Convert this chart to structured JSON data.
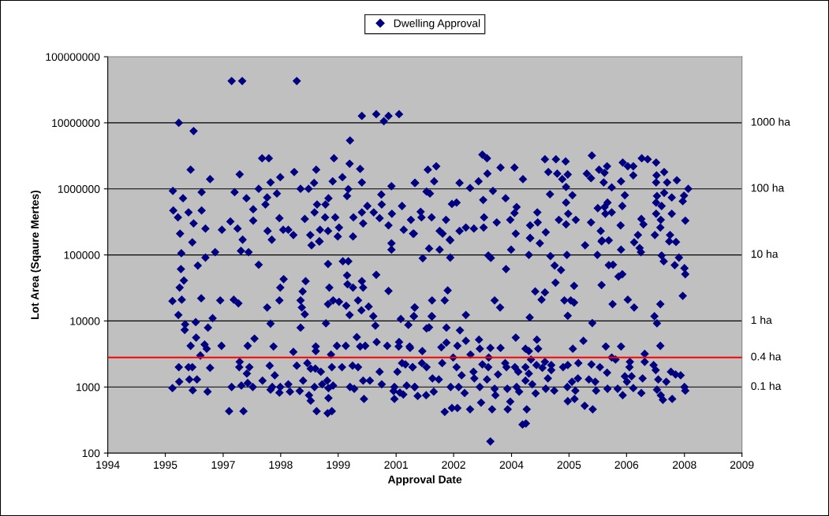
{
  "chart_data": {
    "type": "scatter",
    "xlabel": "Approval Date",
    "ylabel": "Lot Area (Sqaure Mertes)",
    "log": "y",
    "legend": "top",
    "marker": "diamond",
    "xlim": [
      1994,
      2009
    ],
    "xticks": [
      {
        "value": 1994,
        "label": "1994"
      },
      {
        "value": 1995.36,
        "label": "1995"
      },
      {
        "value": 1996.73,
        "label": "1997"
      },
      {
        "value": 1998.09,
        "label": "1998"
      },
      {
        "value": 1999.45,
        "label": "1999"
      },
      {
        "value": 2000.82,
        "label": "2001"
      },
      {
        "value": 2002.18,
        "label": "2002"
      },
      {
        "value": 2003.55,
        "label": "2004"
      },
      {
        "value": 2004.91,
        "label": "2005"
      },
      {
        "value": 2006.27,
        "label": "2006"
      },
      {
        "value": 2007.64,
        "label": "2008"
      },
      {
        "value": 2009,
        "label": "2009"
      }
    ],
    "ylim": [
      100,
      100000000
    ],
    "yticks": [
      100,
      1000,
      10000,
      100000,
      1000000,
      10000000,
      100000000
    ],
    "ref_lines": [
      {
        "axis": "y",
        "value": 1000,
        "color": "#000000",
        "label": "0.1 ha"
      },
      {
        "axis": "y",
        "value": 10000,
        "color": "#000000",
        "label": "1 ha"
      },
      {
        "axis": "y",
        "value": 100000,
        "color": "#000000",
        "label": "10 ha"
      },
      {
        "axis": "y",
        "value": 1000000,
        "color": "#000000",
        "label": "100 ha"
      },
      {
        "axis": "y",
        "value": 10000000,
        "color": "#000000",
        "label": "1000 ha"
      },
      {
        "axis": "y",
        "value": 2800,
        "color": "#ff0000",
        "label": "0.4 ha"
      }
    ],
    "series": [
      {
        "name": "Dwelling Approval",
        "color": "#000080",
        "x": [
          1995.68,
          1996.03,
          1996.93,
          1997.18,
          1998.47,
          2000.01,
          2000.35,
          2000.53,
          2000.64,
          2000.89,
          1999.73,
          1995.96,
          1997.65,
          1997.81,
          1999.35,
          1999.97,
          1998.93,
          1999.72,
          1995.54,
          1996.42,
          1997.12,
          1998.41,
          1998.56,
          2001.27,
          2000.01,
          1995.78,
          1996.22,
          1995.55,
          1995.66,
          1995.71,
          1995.91,
          1996.03,
          1996.22,
          1996.31,
          1996.7,
          1997.0,
          1997.07,
          1996.9,
          1997.28,
          1997.44,
          1997.44,
          1997.57,
          1997.73,
          1997.77,
          1997.85,
          1997.88,
          1997.78,
          1998.06,
          1998.0,
          1998.08,
          1998.15,
          1998.27,
          1998.39,
          1998.66,
          1998.75,
          1998.88,
          1998.95,
          1998.89,
          1998.79,
          1999.0,
          1999.15,
          1999.14,
          1999.02,
          1999.21,
          1999.32,
          1999.22,
          1999.38,
          1999.47,
          1999.44,
          1999.55,
          1999.66,
          1999.69,
          1999.8,
          1999.81,
          2000.01,
          2000.04,
          2000.14,
          2000.29,
          2000.43,
          2000.47,
          2000.48,
          2000.64,
          2000.72,
          2000.71,
          2000.96,
          2001.0,
          2001.17,
          2001.22,
          2001.26,
          2001.57,
          2001.77,
          2001.72,
          2001.54,
          2001.62,
          2001.4,
          2001.42,
          2001.66,
          2001.24,
          2002.0,
          2001.85,
          2001.92,
          2002.09,
          2002.14,
          2002.25,
          2002.32,
          2002.57,
          2002.32,
          2002.47,
          2002.66,
          2002.77,
          2002.86,
          2002.97,
          2002.98,
          2003.11,
          2002.88,
          2002.9,
          2002.89,
          2003.29,
          2003.41,
          2003.62,
          2003.82,
          2003.67,
          2003.62,
          2003.52,
          2003.65,
          2003.2,
          2004.16,
          2004.17,
          2003.99,
          2004.36,
          2003.99,
          2004.34,
          2004.6,
          2004.83,
          2004.42,
          2004.63,
          2004.88,
          2004.75,
          2004.84,
          2004.46,
          2004.99,
          2004.84,
          2004.89,
          2004.67,
          2005.07,
          2004.84,
          2005.45,
          2005.33,
          2005.43,
          2005.62,
          2005.81,
          2005.75,
          2005.73,
          2005.92,
          2005.59,
          2005.75,
          2005.82,
          2005.77,
          2005.92,
          2005.43,
          2005.66,
          2005.69,
          2006.18,
          2006.3,
          2006.43,
          2006.43,
          2006.63,
          2006.77,
          2006.97,
          2007.16,
          2006.98,
          2006.97,
          2007.23,
          2007.46,
          2007.73,
          2007.63,
          2007.6,
          2007.16,
          2007.34,
          2006.99,
          2006.97,
          2007.1,
          2006.97,
          2007.34,
          2007.08,
          2007.66,
          2007.07,
          2006.94,
          2007.3,
          2006.23,
          2006.14,
          2006.17,
          2006.13,
          2006.62,
          2006.67,
          2006.54,
          1995.74,
          1995.73,
          1996.0,
          1996.13,
          1996.31,
          1996.54,
          1995.7,
          1995.8,
          1995.53,
          1995.75,
          1996.21,
          1995.67,
          1995.83,
          1995.82,
          1996.08,
          1996.48,
          1996.37,
          1995.96,
          1996.09,
          1996.29,
          1996.34,
          1996.19,
          1996.69,
          1996.66,
          1996.98,
          1997.09,
          1997.15,
          1997.19,
          1997.33,
          1997.57,
          1995.68,
          1995.53,
          1995.69,
          1995.91,
          1996.0,
          1995.93,
          1996.11,
          1996.01,
          1996.36,
          1996.42,
          1996.87,
          1997.21,
          1996.93,
          1997.11,
          1997.12,
          1997.29,
          1997.35,
          1997.31,
          1997.47,
          1997.16,
          1997.31,
          1997.43,
          1997.66,
          1997.77,
          1997.85,
          1997.92,
          1997.83,
          1997.95,
          1997.89,
          1997.85,
          1998.06,
          1998.08,
          1998.06,
          1998.08,
          1998.16,
          1998.27,
          1998.31,
          1998.39,
          1998.54,
          1998.56,
          1998.59,
          1998.61,
          1998.66,
          1998.68,
          1998.56,
          1998.47,
          1998.62,
          1998.72,
          1998.8,
          1998.76,
          1998.8,
          1998.94,
          1999.2,
          1999.3,
          1999.22,
          1999.22,
          1999.33,
          1999.19,
          1999.07,
          1998.89,
          1998.91,
          1998.92,
          1998.92,
          1999.04,
          1999.28,
          1999.3,
          1999.16,
          1999.21,
          1999.24,
          1999.21,
          1998.82,
          1999.01,
          1999.33,
          1999.47,
          1999.42,
          1999.54,
          1999.56,
          1999.69,
          1999.66,
          1999.67,
          1999.8,
          1999.64,
          1999.72,
          1999.63,
          1999.73,
          1999.83,
          1999.79,
          1999.92,
          1999.92,
          2000.01,
          2000.04,
          2000.0,
          1999.89,
          1999.97,
          2000.09,
          2000.04,
          2000.06,
          2000.2,
          2000.17,
          2000.28,
          2000.33,
          2000.35,
          2000.36,
          2000.43,
          2000.48,
          2000.61,
          2000.64,
          2000.71,
          2000.71,
          2000.78,
          2000.76,
          2000.78,
          2000.85,
          2000.89,
          2000.88,
          2000.93,
          2000.96,
          2001.04,
          2001.11,
          2001.07,
          2000.91,
          2000.99,
          2001.14,
          2001.21,
          2001.26,
          2001.24,
          2001.26,
          2001.45,
          2001.6,
          2001.85,
          2002.1,
          2002.1,
          2002.04,
          2001.67,
          2001.97,
          2001.26,
          2001.24,
          2001.67,
          2002.47,
          2003.0,
          2003.06,
          2003.54,
          2003.42,
          2003.15,
          2003.28,
          2003.96,
          2003.99,
          2004.22,
          2004.47,
          2004.57,
          2004.72,
          2004.59,
          2003.98,
          2004.11,
          2004.26,
          2004.34,
          2004.86,
          2005.03,
          2004.8,
          2004.95,
          2005.03,
          2004.88,
          2005.29,
          2005.58,
          2005.68,
          2005.85,
          2005.85,
          2005.95,
          2005.68,
          2006.08,
          2006.17,
          2005.94,
          2006.14,
          2006.45,
          2006.58,
          2006.61,
          2006.3,
          2006.45,
          2005.46,
          2007.1,
          2007.15,
          2007.41,
          2007.51,
          2007.64,
          2007.66,
          2007.6,
          2007.07,
          2006.93,
          2006.99,
          2007.28,
          2007.44,
          2001.15,
          2001.21,
          2001.26,
          2001.33,
          2001.44,
          2001.54,
          2001.6,
          2001.66,
          2001.43,
          2001.54,
          2001.53,
          2001.68,
          2001.71,
          2001.83,
          2001.89,
          2001.91,
          2002.01,
          2002.01,
          2001.97,
          2002.14,
          2002.27,
          2002.11,
          2002.17,
          2002.25,
          2002.33,
          2002.27,
          2002.37,
          2002.3,
          2002.44,
          2002.47,
          2002.58,
          2002.57,
          2002.65,
          2002.67,
          2002.78,
          2002.8,
          2002.83,
          2002.8,
          2002.86,
          2002.97,
          2003.0,
          2003.05,
          2003.01,
          2003.05,
          2003.09,
          2003.15,
          2003.17,
          2003.23,
          2003.29,
          2003.45,
          2003.46,
          2003.52,
          2003.43,
          2003.4,
          2003.65,
          2003.63,
          2003.67,
          2003.71,
          2003.73,
          2003.81,
          2003.89,
          2003.91,
          2003.88,
          2003.96,
          2003.88,
          2003.96,
          2003.88,
          2004.04,
          2004.01,
          2004.12,
          2004.15,
          2004.18,
          2004.14,
          2004.28,
          2004.34,
          2004.36,
          2004.41,
          2004.49,
          2004.49,
          2004.56,
          2004.77,
          2004.88,
          2004.88,
          2005.04,
          2005.0,
          2005.13,
          2005.12,
          2004.98,
          2004.87,
          2005.06,
          2005.25,
          2005.28,
          2005.47,
          2005.38,
          2005.44,
          2005.55,
          2005.53,
          2005.64,
          2005.78,
          2005.81,
          2005.82,
          2005.92,
          2006.01,
          2006.06,
          2006.14,
          2006.18,
          2006.23,
          2006.28,
          2006.35,
          2006.34,
          2006.43,
          2006.39,
          2006.62,
          2006.65,
          2006.7,
          2006.7,
          2007.07,
          2006.91,
          2006.96,
          2007.02,
          2006.99,
          2007.08,
          2007.13,
          2007.21,
          2007.35,
          2007.32,
          2007.43,
          2007.55,
          2007.64,
          2007.66
        ],
        "values": [
          10000000,
          7500000,
          43000000,
          43000000,
          43000000,
          12700000,
          13500000,
          10600000,
          12700000,
          13500000,
          5400000,
          1950000,
          2900000,
          2900000,
          2900000,
          2000000,
          1950000,
          2400000,
          930000,
          1400000,
          1660000,
          1800000,
          1000000,
          1230000,
          1250000,
          720000,
          890000,
          470000,
          370000,
          210000,
          440000,
          300000,
          470000,
          250000,
          240000,
          890000,
          250000,
          320000,
          720000,
          490000,
          330000,
          1000000,
          580000,
          740000,
          1250000,
          170000,
          230000,
          360000,
          850000,
          1500000,
          240000,
          240000,
          200000,
          350000,
          1000000,
          1230000,
          580000,
          440000,
          200000,
          160000,
          580000,
          370000,
          240000,
          230000,
          1300000,
          720000,
          370000,
          260000,
          190000,
          1500000,
          780000,
          990000,
          190000,
          370000,
          440000,
          300000,
          550000,
          440000,
          360000,
          820000,
          580000,
          280000,
          420000,
          1100000,
          550000,
          240000,
          340000,
          210000,
          1230000,
          1950000,
          2200000,
          1300000,
          910000,
          850000,
          450000,
          370000,
          370000,
          210000,
          340000,
          230000,
          210000,
          170000,
          590000,
          620000,
          1230000,
          1030000,
          230000,
          260000,
          250000,
          1300000,
          3300000,
          2900000,
          1700000,
          930000,
          680000,
          370000,
          260000,
          2100000,
          720000,
          2100000,
          1400000,
          530000,
          430000,
          340000,
          210000,
          310000,
          440000,
          310000,
          280000,
          220000,
          180000,
          2800000,
          2800000,
          2600000,
          1800000,
          1700000,
          1650000,
          1400000,
          1070000,
          830000,
          800000,
          620000,
          420000,
          340000,
          340000,
          290000,
          3200000,
          1700000,
          1450000,
          1950000,
          2200000,
          1750000,
          1250000,
          1050000,
          510000,
          530000,
          620000,
          420000,
          440000,
          310000,
          230000,
          165000,
          2500000,
          2200000,
          2200000,
          1600000,
          2900000,
          2800000,
          2500000,
          1800000,
          1600000,
          1250000,
          1250000,
          1350000,
          1000000,
          790000,
          650000,
          870000,
          740000,
          780000,
          620000,
          550000,
          420000,
          420000,
          340000,
          330000,
          260000,
          200000,
          200000,
          800000,
          1300000,
          550000,
          280000,
          350000,
          290000,
          200000,
          106000,
          61000,
          155000,
          69000,
          91000,
          110000,
          32000,
          41000,
          20000,
          21000,
          22000,
          12300,
          8900,
          7300,
          9600,
          11000,
          7900,
          4200,
          5600,
          4400,
          3800,
          3000,
          4200,
          20500,
          21000,
          18500,
          115000,
          170000,
          110000,
          71000,
          2000,
          960,
          1200,
          2000,
          2000,
          1300,
          1300,
          890,
          850,
          1950,
          430,
          430,
          1000,
          2000,
          2400,
          1600,
          2000,
          4200,
          5400,
          1050,
          1150,
          1000,
          1250,
          16000,
          9100,
          4100,
          2100,
          1500,
          1000,
          910,
          820,
          1000,
          20500,
          32000,
          43000,
          1100,
          850,
          3400,
          870,
          20500,
          16000,
          28000,
          12600,
          40000,
          7900,
          2100,
          1250,
          2300,
          1900,
          750,
          620,
          430,
          400,
          430,
          680,
          960,
          1050,
          1250,
          1100,
          1000,
          1900,
          4100,
          3500,
          1700,
          3100,
          2000,
          9200,
          18000,
          32000,
          73000,
          140000,
          160000,
          20500,
          19500,
          4200,
          2000,
          80000,
          80000,
          49000,
          36000,
          32000,
          17000,
          12300,
          4200,
          1000,
          940,
          2100,
          2000,
          20500,
          40000,
          32000,
          14500,
          5700,
          4100,
          4200,
          1250,
          660,
          1250,
          16500,
          11800,
          8500,
          50000,
          4800,
          1700,
          1100,
          4200,
          28500,
          150000,
          120000,
          1000,
          870,
          660,
          1700,
          4800,
          4100,
          10700,
          2300,
          2200,
          8700,
          1050,
          820,
          770,
          4100,
          2000,
          16000,
          11800,
          1000,
          89000,
          125000,
          120000,
          91000,
          166000,
          29000,
          20500,
          20500,
          16000,
          11800,
          11700,
          12300,
          98000,
          90000,
          120000,
          61000,
          20500,
          16000,
          100000,
          180000,
          150000,
          96000,
          69000,
          59000,
          38000,
          11300,
          28000,
          21000,
          27000,
          100000,
          34000,
          20500,
          20500,
          19000,
          12000,
          140000,
          100000,
          160000,
          166000,
          70000,
          71000,
          35000,
          47000,
          51000,
          18000,
          120000,
          155000,
          127000,
          110000,
          21000,
          16000,
          9300,
          98000,
          80000,
          70000,
          91000,
          63000,
          51000,
          24000,
          18000,
          11800,
          9200,
          160000,
          157000,
          3900,
          2000,
          1000,
          730,
          3500,
          7700,
          8000,
          11800,
          2300,
          2000,
          750,
          1350,
          850,
          1300,
          4000,
          2300,
          7900,
          4700,
          420,
          480,
          480,
          1000,
          2800,
          2000,
          7200,
          4200,
          1500,
          1000,
          810,
          5000,
          3100,
          460,
          1700,
          1350,
          5200,
          3800,
          580,
          1000,
          2200,
          1300,
          2000,
          3900,
          2800,
          150,
          460,
          940,
          750,
          1550,
          3900,
          940,
          460,
          600,
          2000,
          2300,
          5600,
          2000,
          1000,
          1700,
          850,
          270,
          280,
          460,
          3800,
          3500,
          2000,
          1600,
          1250,
          1100,
          2600,
          800,
          5200,
          3800,
          2150,
          1950,
          2400,
          940,
          1350,
          2150,
          1800,
          880,
          2000,
          2150,
          610,
          660,
          3800,
          2300,
          1350,
          1200,
          1000,
          880,
          5000,
          520,
          460,
          1300,
          2200,
          880,
          1200,
          2000,
          4100,
          1650,
          940,
          2800,
          2600,
          940,
          4100,
          750,
          1450,
          1200,
          2400,
          2000,
          960,
          1450,
          810,
          1350,
          3180,
          2400,
          4200,
          2150,
          1800,
          1300,
          910,
          750,
          640,
          1200,
          660,
          1700,
          1550,
          1500,
          1000,
          880
        ]
      }
    ]
  }
}
